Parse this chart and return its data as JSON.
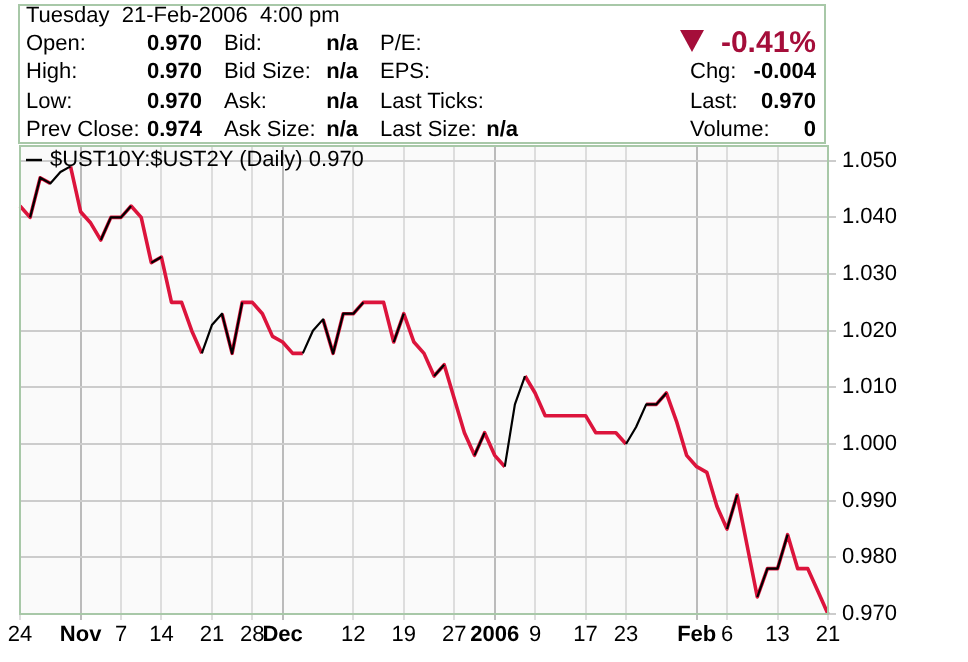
{
  "chart_data": {
    "type": "line",
    "title": "Tuesday  21-Feb-2006  4:00 pm",
    "annotations": [
      "Open:",
      "0.970",
      "Bid:",
      "n/a",
      "P/E:",
      "-0.41%",
      "High:",
      "0.970",
      "Bid Size:",
      "n/a",
      "EPS:",
      "Chg:",
      "-0.004",
      "Low:",
      "0.970",
      "Ask:",
      "n/a",
      "Last Ticks:",
      "Last:",
      "0.970",
      "Prev Close:",
      "0.974",
      "Ask Size:",
      "n/a",
      "Last Size:",
      "n/a",
      "Volume:",
      "0"
    ],
    "categories": [
      "24",
      null,
      null,
      null,
      null,
      null,
      "Nov",
      null,
      null,
      null,
      "7",
      null,
      null,
      null,
      "14",
      null,
      null,
      null,
      null,
      "21",
      null,
      null,
      null,
      "28",
      null,
      null,
      "Dec",
      null,
      null,
      null,
      null,
      null,
      null,
      "12",
      null,
      null,
      null,
      null,
      "19",
      null,
      null,
      null,
      null,
      "27",
      null,
      null,
      null,
      "2006",
      null,
      null,
      null,
      "9",
      null,
      null,
      null,
      null,
      "17",
      null,
      null,
      null,
      "23",
      null,
      null,
      null,
      null,
      null,
      null,
      "Feb",
      null,
      null,
      "6",
      null,
      null,
      null,
      null,
      "13",
      null,
      null,
      null,
      null,
      "21"
    ],
    "series": [
      {
        "color": "#dc143c",
        "values": [
          1.042,
          1.04,
          1.047,
          1.046,
          null,
          1.049,
          1.041,
          1.039,
          1.036,
          1.04,
          1.04,
          1.042,
          1.04,
          1.032,
          1.033,
          1.025,
          1.025,
          1.02,
          1.016,
          null,
          1.023,
          1.016,
          1.025,
          1.025,
          1.023,
          1.019,
          1.018,
          1.016,
          1.016,
          null,
          1.022,
          1.016,
          1.023,
          1.023,
          1.025,
          1.025,
          1.025,
          1.018,
          1.023,
          1.018,
          1.016,
          1.012,
          1.014,
          1.008,
          1.002,
          0.998,
          1.002,
          0.998,
          0.996,
          null,
          1.012,
          1.009,
          1.005,
          1.005,
          1.005,
          1.005,
          1.005,
          1.002,
          1.002,
          1.002,
          1.0,
          null,
          1.007,
          1.007,
          1.009,
          1.004,
          0.998,
          0.996,
          0.995,
          0.989,
          0.985,
          0.991,
          0.982,
          0.973,
          0.978,
          0.978,
          0.984,
          0.978,
          0.978,
          0.974,
          0.97
        ]
      },
      {
        "name": "$UST10Y:$UST2Y (Daily) 0.970",
        "color": "#000000",
        "values": [
          null,
          1.04,
          1.047,
          1.046,
          1.048,
          1.049,
          null,
          null,
          1.036,
          1.04,
          1.04,
          1.042,
          null,
          1.032,
          1.033,
          null,
          null,
          null,
          1.016,
          1.021,
          1.023,
          1.016,
          1.025,
          null,
          null,
          null,
          null,
          null,
          1.016,
          1.02,
          1.022,
          1.016,
          1.023,
          1.023,
          1.025,
          null,
          null,
          1.018,
          1.023,
          null,
          null,
          1.012,
          1.014,
          null,
          null,
          0.998,
          1.002,
          null,
          0.996,
          1.007,
          1.012,
          null,
          null,
          null,
          null,
          null,
          null,
          null,
          null,
          null,
          1.0,
          1.003,
          1.007,
          1.007,
          1.009,
          null,
          null,
          null,
          null,
          null,
          0.985,
          0.991,
          null,
          0.973,
          0.978,
          0.978,
          0.984,
          null,
          null,
          null,
          null
        ]
      }
    ],
    "ylim": [
      0.97,
      1.0526
    ],
    "yticks": [
      {
        "value": 0.97,
        "label": "0.970"
      },
      {
        "value": 0.98,
        "label": "0.980"
      },
      {
        "value": 0.99,
        "label": "0.990"
      },
      {
        "value": 1.0,
        "label": "1.000"
      },
      {
        "value": 1.01,
        "label": "1.010"
      },
      {
        "value": 1.02,
        "label": "1.020"
      },
      {
        "value": 1.03,
        "label": "1.030"
      },
      {
        "value": 1.04,
        "label": "1.040"
      },
      {
        "value": 1.05,
        "label": "1.050"
      }
    ],
    "grid": true,
    "legend": "top left",
    "marker": "none",
    "line_style": "solid"
  }
}
